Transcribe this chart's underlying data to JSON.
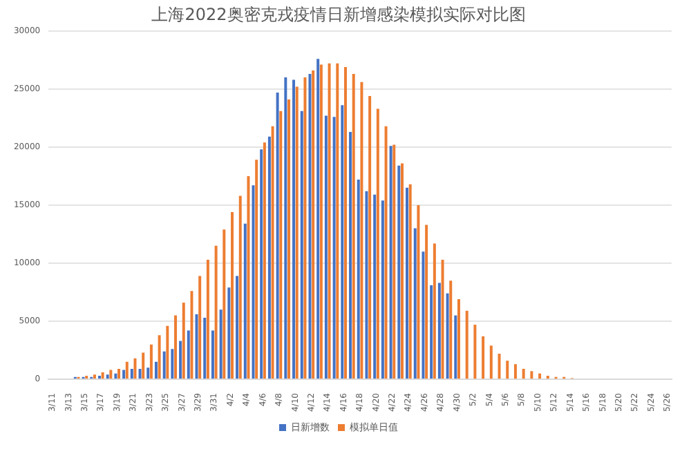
{
  "chart_data": {
    "type": "bar",
    "title": "上海2022奥密克戎疫情日新增感染模拟实际对比图",
    "categories": [
      "3/11",
      null,
      "3/13",
      null,
      "3/15",
      null,
      "3/17",
      null,
      "3/19",
      null,
      "3/21",
      null,
      "3/23",
      null,
      "3/25",
      null,
      "3/27",
      null,
      "3/29",
      null,
      "3/31",
      null,
      "4/2",
      null,
      "4/4",
      null,
      "4/6",
      null,
      "4/8",
      null,
      "4/10",
      null,
      "4/12",
      null,
      "4/14",
      null,
      "4/16",
      null,
      "4/18",
      null,
      "4/20",
      null,
      "4/22",
      null,
      "4/24",
      null,
      "4/26",
      null,
      "4/28",
      null,
      "4/30",
      null,
      "5/2",
      null,
      "5/4",
      null,
      "5/6",
      null,
      "5/8",
      null,
      "5/10",
      null,
      "5/12",
      null,
      "5/14",
      null,
      "5/16",
      null,
      "5/18",
      null,
      "5/20",
      null,
      "5/22",
      null,
      "5/24",
      null,
      "5/26"
    ],
    "series": [
      {
        "name": "日新增数",
        "color": "#4472c4",
        "values": [
          null,
          null,
          null,
          200,
          200,
          200,
          300,
          400,
          500,
          800,
          900,
          900,
          1000,
          1500,
          2400,
          2600,
          3300,
          4200,
          5600,
          5300,
          4200,
          6000,
          7900,
          8900,
          13400,
          16700,
          19800,
          20900,
          24700,
          26000,
          25800,
          23100,
          26300,
          27600,
          22700,
          22600,
          23600,
          21300,
          17200,
          16200,
          15900,
          15400,
          20100,
          18400,
          16500,
          13000,
          11000,
          8100,
          8300,
          7400,
          5500,
          null,
          null,
          null,
          null,
          null,
          null,
          null,
          null,
          null,
          null,
          null,
          null,
          null,
          null,
          null,
          null,
          null,
          null,
          null,
          null,
          null,
          null,
          null,
          null,
          null,
          null
        ]
      },
      {
        "name": "模拟单日值",
        "color": "#ed7d31",
        "values": [
          null,
          null,
          null,
          200,
          300,
          400,
          600,
          800,
          900,
          1500,
          1800,
          2300,
          3000,
          3800,
          4600,
          5500,
          6600,
          7600,
          8900,
          10300,
          11500,
          12900,
          14400,
          15800,
          17500,
          18900,
          20400,
          21800,
          23100,
          24100,
          25200,
          26000,
          26600,
          27100,
          27200,
          27200,
          26900,
          26300,
          25600,
          24400,
          23300,
          21800,
          20200,
          18600,
          16800,
          15000,
          13300,
          11700,
          10300,
          8500,
          6900,
          5900,
          4700,
          3700,
          2900,
          2200,
          1600,
          1300,
          900,
          700,
          500,
          300,
          200,
          200,
          100,
          null,
          null,
          null,
          null,
          null,
          null,
          null,
          null,
          null,
          null,
          null,
          null
        ]
      }
    ],
    "ylim": [
      0,
      30000
    ],
    "yticks": [
      0,
      5000,
      10000,
      15000,
      20000,
      25000,
      30000
    ],
    "grid": "y",
    "legend": "bottom"
  }
}
